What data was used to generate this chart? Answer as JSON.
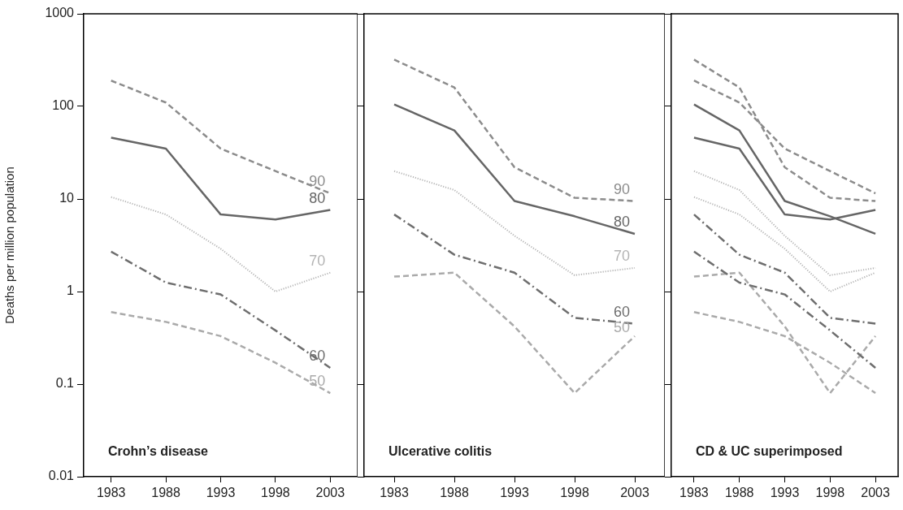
{
  "chart_data": [
    {
      "type": "line",
      "title": "Crohn’s disease",
      "ylabel": "Deaths per million population",
      "categories": [
        "1983",
        "1988",
        "1993",
        "1998",
        "2003"
      ],
      "log": true,
      "ylim": [
        0.01,
        1000
      ],
      "yticks": [
        0.01,
        0.1,
        1,
        10,
        100,
        1000
      ],
      "marker": "none",
      "series": [
        {
          "name": "90",
          "color": "#8c8c8c",
          "line_style": "dashed",
          "values": [
            190,
            110,
            35,
            20,
            11.5
          ]
        },
        {
          "name": "80",
          "color": "#666666",
          "line_style": "solid",
          "values": [
            46,
            35,
            6.8,
            6.0,
            7.6
          ]
        },
        {
          "name": "70",
          "color": "#b4b4b4",
          "line_style": "dotted",
          "values": [
            10.5,
            6.8,
            2.9,
            1.0,
            1.6
          ]
        },
        {
          "name": "60",
          "color": "#6e6e6e",
          "line_style": "dashdot",
          "values": [
            2.7,
            1.25,
            0.93,
            0.38,
            0.15
          ]
        },
        {
          "name": "50",
          "color": "#aaaaaa",
          "line_style": "dashed",
          "values": [
            0.6,
            0.47,
            0.33,
            0.17,
            0.08
          ]
        }
      ]
    },
    {
      "type": "line",
      "title": "Ulcerative colitis",
      "categories": [
        "1983",
        "1988",
        "1993",
        "1998",
        "2003"
      ],
      "log": true,
      "ylim": [
        0.01,
        1000
      ],
      "yticks": [
        0.01,
        0.1,
        1,
        10,
        100,
        1000
      ],
      "tick_labels": "x",
      "marker": "none",
      "series": [
        {
          "name": "90",
          "color": "#8c8c8c",
          "line_style": "dashed",
          "values": [
            320,
            160,
            22,
            10.3,
            9.5
          ]
        },
        {
          "name": "80",
          "color": "#666666",
          "line_style": "solid",
          "values": [
            105,
            55,
            9.5,
            6.5,
            4.2
          ]
        },
        {
          "name": "70",
          "color": "#b4b4b4",
          "line_style": "dotted",
          "values": [
            20,
            12.5,
            4.0,
            1.5,
            1.8
          ]
        },
        {
          "name": "60",
          "color": "#6e6e6e",
          "line_style": "dashdot",
          "values": [
            6.8,
            2.5,
            1.6,
            0.52,
            0.45
          ]
        },
        {
          "name": "50",
          "color": "#aaaaaa",
          "line_style": "dashed",
          "values": [
            1.45,
            1.6,
            0.42,
            0.08,
            0.33
          ]
        }
      ]
    },
    {
      "type": "line",
      "title": "CD & UC superimposed",
      "categories": [
        "1983",
        "1988",
        "1993",
        "1998",
        "2003"
      ],
      "log": true,
      "ylim": [
        0.01,
        1000
      ],
      "yticks": [
        0.01,
        0.1,
        1,
        10,
        100,
        1000
      ],
      "tick_labels": "x",
      "marker": "none",
      "series": [
        {
          "color": "#8c8c8c",
          "line_style": "dashed",
          "values": [
            190,
            110,
            35,
            20,
            11.5
          ]
        },
        {
          "color": "#666666",
          "line_style": "solid",
          "values": [
            46,
            35,
            6.8,
            6.0,
            7.6
          ]
        },
        {
          "color": "#b4b4b4",
          "line_style": "dotted",
          "values": [
            10.5,
            6.8,
            2.9,
            1.0,
            1.6
          ]
        },
        {
          "color": "#6e6e6e",
          "line_style": "dashdot",
          "values": [
            2.7,
            1.25,
            0.93,
            0.38,
            0.15
          ]
        },
        {
          "color": "#aaaaaa",
          "line_style": "dashed",
          "values": [
            0.6,
            0.47,
            0.33,
            0.17,
            0.08
          ]
        },
        {
          "color": "#8c8c8c",
          "line_style": "dashed",
          "values": [
            320,
            160,
            22,
            10.3,
            9.5
          ]
        },
        {
          "color": "#666666",
          "line_style": "solid",
          "values": [
            105,
            55,
            9.5,
            6.5,
            4.2
          ]
        },
        {
          "color": "#b4b4b4",
          "line_style": "dotted",
          "values": [
            20,
            12.5,
            4.0,
            1.5,
            1.8
          ]
        },
        {
          "color": "#6e6e6e",
          "line_style": "dashdot",
          "values": [
            6.8,
            2.5,
            1.6,
            0.52,
            0.45
          ]
        },
        {
          "color": "#aaaaaa",
          "line_style": "dashed",
          "values": [
            1.45,
            1.6,
            0.42,
            0.08,
            0.33
          ]
        }
      ]
    }
  ]
}
